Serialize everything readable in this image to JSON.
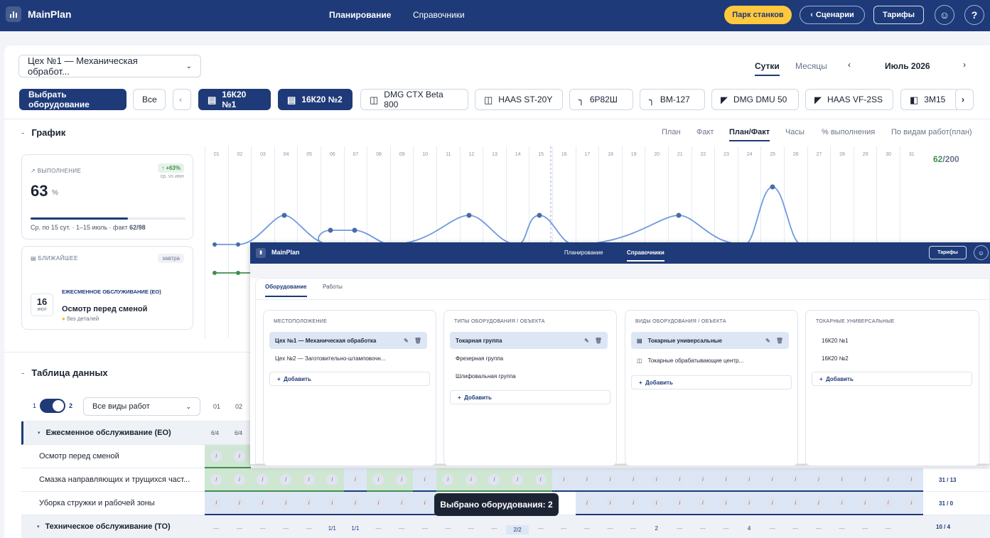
{
  "topbar": {
    "brand": "MainPlan",
    "nav": [
      "Планирование",
      "Справочники"
    ],
    "park": "Парк станков",
    "scenarios": "Сценарии",
    "tariffs": "Тарифы"
  },
  "toolbar": {
    "workshop": "Цех №1 — Механическая обработ...",
    "period_tabs": [
      "Сутки",
      "Месяцы"
    ],
    "month": "Июль 2026"
  },
  "equipment": {
    "select_btn": "Выбрать оборудование",
    "all_btn": "Все",
    "chips": [
      "16К20 №1",
      "16К20 №2",
      "DMG CTX Beta 800",
      "HAAS ST-20Y",
      "6Р82Ш",
      "ВМ-127",
      "DMG DMU 50",
      "HAAS VF-2SS",
      "3М15"
    ]
  },
  "chart_section": {
    "title": "График",
    "view_tabs": [
      "План",
      "Факт",
      "План/Факт",
      "Часы",
      "% выполнения",
      "По видам работ(план)"
    ],
    "days": [
      "01",
      "02",
      "03",
      "04",
      "05",
      "06",
      "07",
      "08",
      "09",
      "10",
      "11",
      "12",
      "13",
      "14",
      "15",
      "16",
      "17",
      "18",
      "19",
      "20",
      "21",
      "22",
      "23",
      "24",
      "25",
      "26",
      "27",
      "28",
      "29",
      "30",
      "31"
    ],
    "total_fact": "62",
    "total_plan": "/200"
  },
  "kpi": {
    "label": "ВЫПОЛНЕНИЕ",
    "delta": "+63%",
    "delta_note": "ср. vs июн",
    "value": "63",
    "unit": "%",
    "progress": 0.63,
    "note": "Ср. по 15 сут. · 1–15 июль · факт ",
    "note_val": "62/98"
  },
  "next": {
    "label": "БЛИЖАЙШЕЕ",
    "badge": "завтра",
    "day": "16",
    "month": "июл",
    "type": "ЕЖЕСМЕННОЕ ОБСЛУЖИВАНИЕ (ЕО)",
    "title": "Осмотр перед сменой",
    "detail": "без деталей"
  },
  "table": {
    "title": "Таблица данных",
    "toggle_left": "1",
    "toggle_right": "2",
    "work_filter": "Все виды работ",
    "day_heads": [
      "01",
      "02"
    ],
    "groups": [
      {
        "name": "Ежесменное обслуживание (ЕО)",
        "vals": [
          "6/4",
          "6/4"
        ]
      },
      {
        "name": "Техническое обслуживание (ТО)"
      }
    ],
    "rows": [
      {
        "name": "Осмотр перед сменой"
      },
      {
        "name": "Смазка направляющих и трущихся част...",
        "total": "31 / 13"
      },
      {
        "name": "Уборка стружки и рабочей зоны",
        "total": "31 / 0"
      }
    ],
    "to_row": [
      "—",
      "—",
      "—",
      "—",
      "—",
      "1/1",
      "1/1",
      "—",
      "—",
      "—",
      "—",
      "—",
      "—",
      "2/2",
      "—",
      "—",
      "—",
      "—",
      "—",
      "2",
      "—",
      "—",
      "—",
      "4",
      "—",
      "—",
      "—",
      "—",
      "—",
      "—"
    ],
    "to_total": "10 / 4"
  },
  "overlay": {
    "brand": "MainPlan",
    "nav": [
      "Планирование",
      "Справочники"
    ],
    "tariffs": "Тарифы",
    "tabs": [
      "Оборудование",
      "Работы"
    ],
    "columns": [
      {
        "header": "МЕСТОПОЛОЖЕНИЕ",
        "items": [
          "Цех №1 — Механическая обработка",
          "Цех №2 — Заготовительно-штамповочн..."
        ],
        "add": "Добавить"
      },
      {
        "header": "ТИПЫ ОБОРУДОВАНИЯ / ОБЪЕКТА",
        "items": [
          "Токарная группа",
          "Фрезерная группа",
          "Шлифовальная группа"
        ],
        "add": "Добавить"
      },
      {
        "header": "ВИДЫ ОБОРУДОВАНИЯ / ОБЪЕКТА",
        "items": [
          "Токарные универсальные",
          "Токарные обрабатывающие центр..."
        ],
        "add": "Добавить"
      },
      {
        "header": "ТОКАРНЫЕ УНИВЕРСАЛЬНЫЕ",
        "items": [
          "16К20 №1",
          "16К20 №2"
        ],
        "add": "Добавить"
      }
    ]
  },
  "toast": "Выбрано оборудования: 2",
  "colors": {
    "primary": "#1e3a78",
    "accent": "#ffc83d",
    "success": "#3f8f4f",
    "line": "#6f9ae0"
  }
}
